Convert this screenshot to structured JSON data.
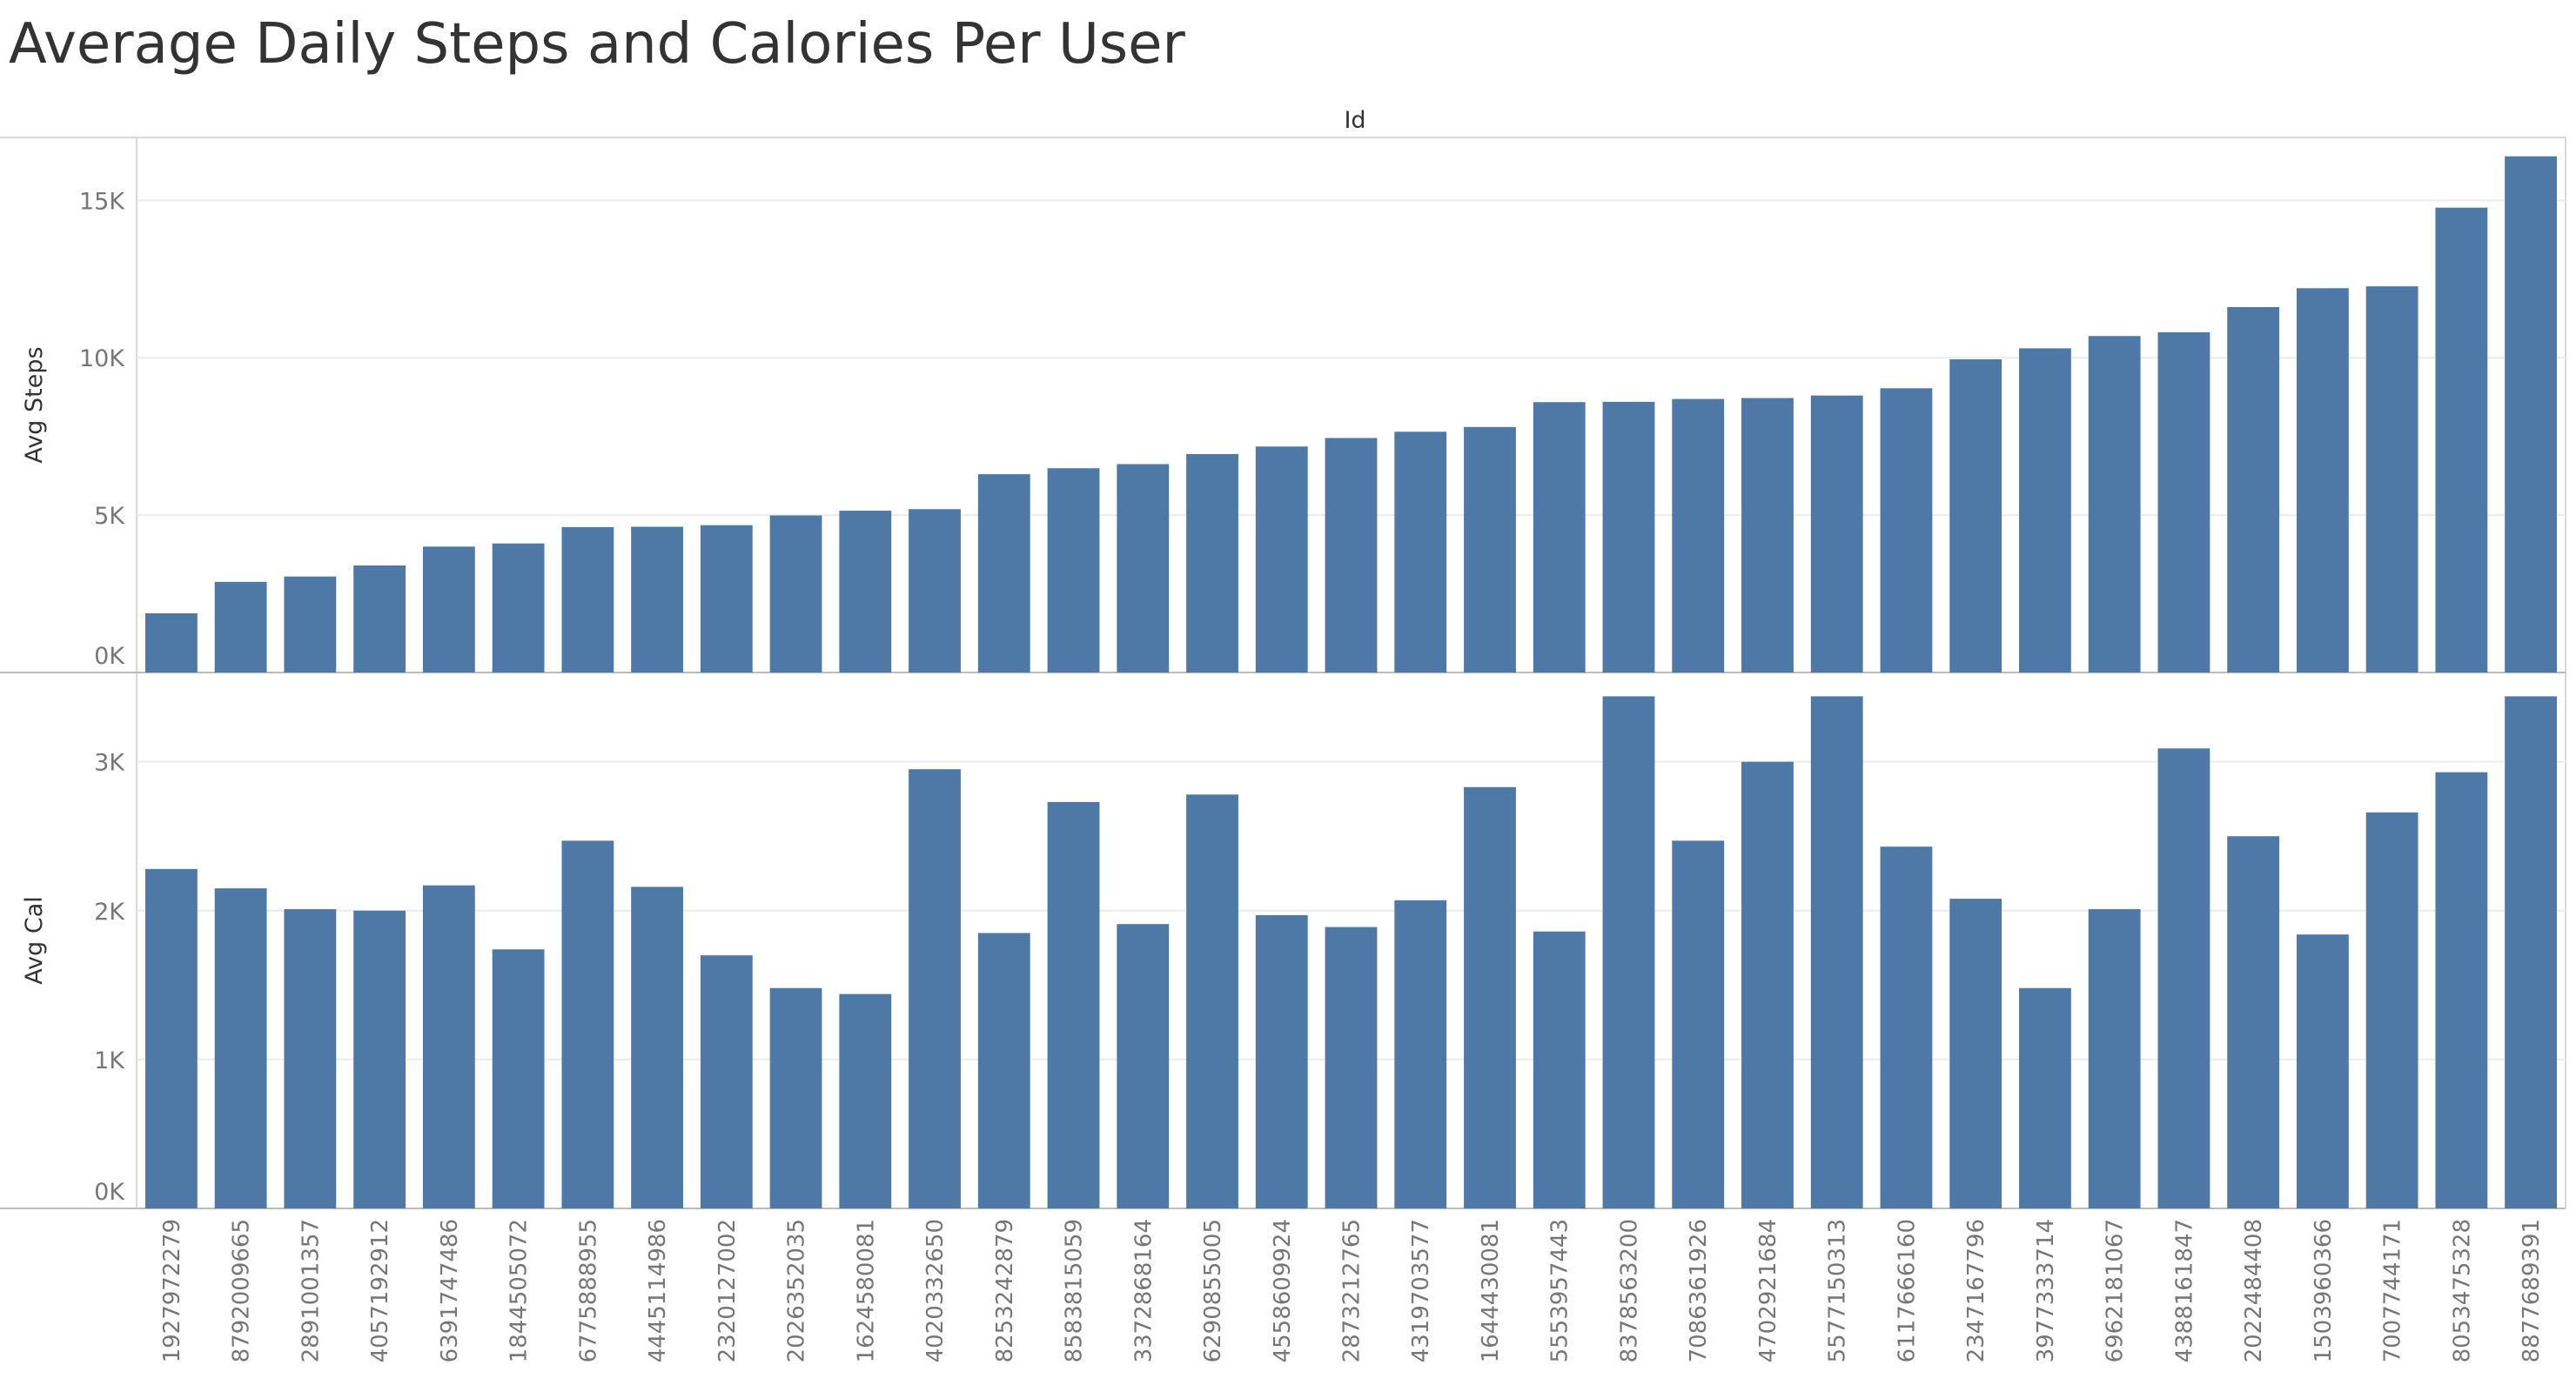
{
  "chart_data": {
    "type": "bar",
    "title": "Average Daily Steps and Calories Per User",
    "column_header": "Id",
    "color": "#4e79a7",
    "grid": true,
    "categories": [
      "1927972279",
      "8792009665",
      "2891001357",
      "4057192912",
      "6391747486",
      "1844505072",
      "6775888955",
      "4445114986",
      "2320127002",
      "2026352035",
      "1624580081",
      "4020332650",
      "8253242879",
      "8583815059",
      "3372868164",
      "6290855005",
      "4558609924",
      "2873212765",
      "4319703577",
      "1644430081",
      "5553957443",
      "8378563200",
      "7086361926",
      "4702921684",
      "5577150313",
      "6117666160",
      "2347167796",
      "3977333714",
      "6962181067",
      "4388161847",
      "2022484408",
      "1503960366",
      "7007744171",
      "8053475328",
      "8877689391"
    ],
    "series": [
      {
        "name": "Avg Steps",
        "ylabel": "Avg Steps",
        "ylim": [
          0,
          17000
        ],
        "ticks": [
          {
            "v": 0,
            "label": "0K"
          },
          {
            "v": 5000,
            "label": "5K"
          },
          {
            "v": 10000,
            "label": "10K"
          },
          {
            "v": 15000,
            "label": "15K"
          }
        ],
        "values": [
          1880,
          2880,
          3050,
          3400,
          4000,
          4100,
          4620,
          4630,
          4680,
          4990,
          5140,
          5190,
          6300,
          6490,
          6620,
          6940,
          7180,
          7450,
          7650,
          7800,
          8590,
          8600,
          8690,
          8720,
          8800,
          9030,
          9950,
          10300,
          10690,
          10810,
          11610,
          12210,
          12270,
          14770,
          16400
        ]
      },
      {
        "name": "Avg Cal",
        "ylabel": "Avg Cal",
        "ylim": [
          0,
          3600
        ],
        "ticks": [
          {
            "v": 0,
            "label": "0K"
          },
          {
            "v": 1000,
            "label": "1K"
          },
          {
            "v": 2000,
            "label": "2K"
          },
          {
            "v": 3000,
            "label": "3K"
          }
        ],
        "values": [
          2280,
          2150,
          2010,
          2000,
          2170,
          1740,
          2470,
          2160,
          1700,
          1480,
          1440,
          2950,
          1850,
          2730,
          1910,
          2780,
          1970,
          1890,
          2070,
          2830,
          1860,
          3440,
          2470,
          3000,
          3440,
          2430,
          2080,
          1480,
          2010,
          3090,
          2500,
          1840,
          2660,
          2930,
          3440
        ]
      }
    ]
  }
}
